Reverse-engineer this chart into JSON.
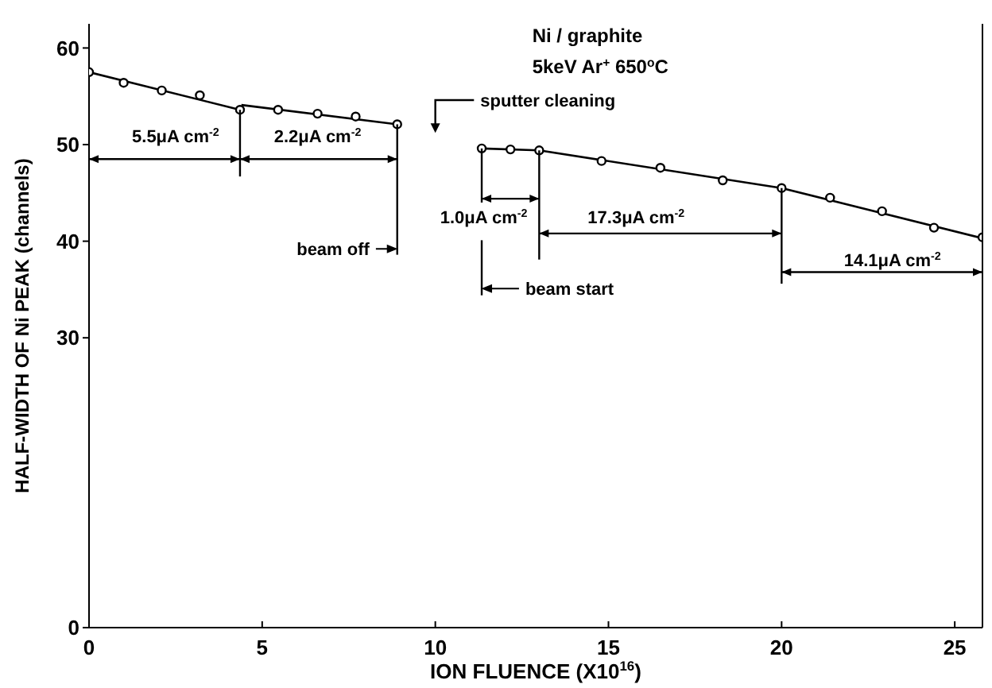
{
  "chart_data": {
    "type": "scatter",
    "xlabel": "ION FLUENCE (X10$^{16}$)",
    "ylabel": "HALF-WIDTH OF Ni PEAK (channels)",
    "xlim": [
      0,
      25.8
    ],
    "xticks": [
      0,
      5,
      10,
      15,
      20,
      25
    ],
    "ylim": [
      0,
      62.5
    ],
    "yticks": [
      0,
      30,
      40,
      50,
      60
    ],
    "marker": "circle",
    "series": [
      {
        "color": "#000000",
        "x": [
          0,
          1.0,
          2.1,
          3.2,
          4.36,
          5.46,
          6.6,
          7.7,
          8.9,
          11.34,
          12.17,
          13.0,
          14.8,
          16.5,
          18.3,
          20.0,
          21.4,
          22.9,
          24.4,
          25.8
        ],
        "values": [
          57.5,
          56.4,
          55.6,
          55.1,
          53.6,
          53.6,
          53.2,
          52.9,
          52.1,
          49.6,
          49.5,
          49.4,
          48.3,
          47.6,
          46.3,
          45.5,
          44.5,
          43.1,
          41.4,
          40.4
        ]
      },
      {
        "type": "line",
        "color": "#000000",
        "marker": "none",
        "x": [
          0,
          4.36
        ],
        "values": [
          57.5,
          53.6
        ]
      },
      {
        "type": "line",
        "color": "#000000",
        "marker": "none",
        "x": [
          4.4,
          8.9
        ],
        "values": [
          54.1,
          52.1
        ]
      },
      {
        "type": "line",
        "color": "#000000",
        "marker": "none",
        "x": [
          11.34,
          13.0,
          20.0,
          25.8
        ],
        "values": [
          49.6,
          49.4,
          45.5,
          40.3
        ]
      }
    ],
    "annotations": [
      "Ni / graphite",
      "5keV Ar$^{+}$  650$^{o}$C",
      "sputter cleaning",
      "5.5μA cm$^{-2}$",
      "2.2μA cm$^{-2}$",
      "beam off",
      {
        "text": "1.0μA cm$^{-2}$",
        "x": 11.34,
        "y": 49.6
      },
      {
        "text": "beam start",
        "x": 13.0,
        "y": 49.4
      },
      "17.3μA cm$^{-2}$",
      "14.1μA cm$^{-2}$"
    ]
  }
}
